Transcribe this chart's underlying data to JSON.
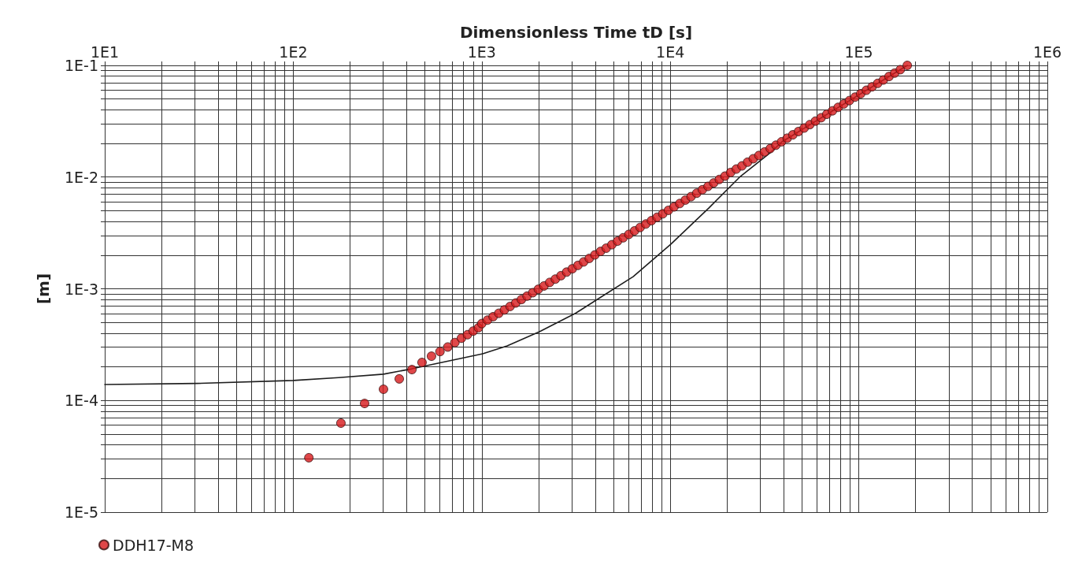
{
  "chart_data": {
    "type": "scatter",
    "xlabel": "Dimensionless Time tD [s]",
    "ylabel": "[m]",
    "log": "xy",
    "grid": true,
    "legend": "bottom left",
    "xlim": [
      10,
      1000000
    ],
    "ylim": [
      1e-05,
      0.1
    ],
    "xticks": [
      {
        "value": 10,
        "label": "1E1"
      },
      {
        "value": 20,
        "label": null
      },
      {
        "value": 30,
        "label": null
      },
      {
        "value": 40,
        "label": null
      },
      {
        "value": 50,
        "label": null
      },
      {
        "value": 60,
        "label": null
      },
      {
        "value": 70,
        "label": null
      },
      {
        "value": 80,
        "label": null
      },
      {
        "value": 90,
        "label": null
      },
      {
        "value": 100,
        "label": "1E2"
      },
      {
        "value": 200,
        "label": null
      },
      {
        "value": 300,
        "label": null
      },
      {
        "value": 400,
        "label": null
      },
      {
        "value": 500,
        "label": null
      },
      {
        "value": 600,
        "label": null
      },
      {
        "value": 700,
        "label": null
      },
      {
        "value": 800,
        "label": null
      },
      {
        "value": 900,
        "label": null
      },
      {
        "value": 1000,
        "label": "1E3"
      },
      {
        "value": 2000,
        "label": null
      },
      {
        "value": 3000,
        "label": null
      },
      {
        "value": 4000,
        "label": null
      },
      {
        "value": 5000,
        "label": null
      },
      {
        "value": 6000,
        "label": null
      },
      {
        "value": 7000,
        "label": null
      },
      {
        "value": 8000,
        "label": null
      },
      {
        "value": 9000,
        "label": null
      },
      {
        "value": 10000,
        "label": "1E4"
      },
      {
        "value": 20000,
        "label": null
      },
      {
        "value": 30000,
        "label": null
      },
      {
        "value": 40000,
        "label": null
      },
      {
        "value": 50000,
        "label": null
      },
      {
        "value": 60000,
        "label": null
      },
      {
        "value": 70000,
        "label": null
      },
      {
        "value": 80000,
        "label": null
      },
      {
        "value": 90000,
        "label": null
      },
      {
        "value": 100000,
        "label": "1E5"
      },
      {
        "value": 200000,
        "label": null
      },
      {
        "value": 300000,
        "label": null
      },
      {
        "value": 400000,
        "label": null
      },
      {
        "value": 500000,
        "label": null
      },
      {
        "value": 600000,
        "label": null
      },
      {
        "value": 700000,
        "label": null
      },
      {
        "value": 800000,
        "label": null
      },
      {
        "value": 900000,
        "label": null
      },
      {
        "value": 1000000,
        "label": "1E6"
      }
    ],
    "yticks": [
      {
        "value": 1e-05,
        "label": "1E-5"
      },
      {
        "value": 2e-05,
        "label": null
      },
      {
        "value": 3e-05,
        "label": null
      },
      {
        "value": 4e-05,
        "label": null
      },
      {
        "value": 5e-05,
        "label": null
      },
      {
        "value": 6e-05,
        "label": null
      },
      {
        "value": 7e-05,
        "label": null
      },
      {
        "value": 8e-05,
        "label": null
      },
      {
        "value": 9e-05,
        "label": null
      },
      {
        "value": 0.0001,
        "label": "1E-4"
      },
      {
        "value": 0.0002,
        "label": null
      },
      {
        "value": 0.0003,
        "label": null
      },
      {
        "value": 0.0004,
        "label": null
      },
      {
        "value": 0.0005,
        "label": null
      },
      {
        "value": 0.0006,
        "label": null
      },
      {
        "value": 0.0007,
        "label": null
      },
      {
        "value": 0.0008,
        "label": null
      },
      {
        "value": 0.0009,
        "label": null
      },
      {
        "value": 0.001,
        "label": "1E-3"
      },
      {
        "value": 0.002,
        "label": null
      },
      {
        "value": 0.003,
        "label": null
      },
      {
        "value": 0.004,
        "label": null
      },
      {
        "value": 0.005,
        "label": null
      },
      {
        "value": 0.006,
        "label": null
      },
      {
        "value": 0.007,
        "label": null
      },
      {
        "value": 0.008,
        "label": null
      },
      {
        "value": 0.009,
        "label": null
      },
      {
        "value": 0.01,
        "label": "1E-2"
      },
      {
        "value": 0.02,
        "label": null
      },
      {
        "value": 0.03,
        "label": null
      },
      {
        "value": 0.04,
        "label": null
      },
      {
        "value": 0.05,
        "label": null
      },
      {
        "value": 0.06,
        "label": null
      },
      {
        "value": 0.07,
        "label": null
      },
      {
        "value": 0.08,
        "label": null
      },
      {
        "value": 0.09,
        "label": null
      },
      {
        "value": 0.1,
        "label": "1E-1"
      }
    ],
    "series": [
      {
        "type": "line",
        "color": "#1e1e1e",
        "marker": "none",
        "line_style": "solid",
        "x": [
          10,
          30.8,
          100,
          174,
          301,
          426,
          1011,
          1363,
          2022,
          3147,
          6353,
          10070,
          15990,
          23280,
          33880,
          39100,
          180700
        ],
        "values": [
          0.000139,
          0.000142,
          0.000151,
          0.00016,
          0.000172,
          0.000192,
          0.000262,
          0.000308,
          0.000413,
          0.000604,
          0.001285,
          0.00251,
          0.00528,
          0.00996,
          0.0165,
          0.0207,
          0.1
        ]
      },
      {
        "name": "DDH17-M8",
        "color": "#d7191c",
        "marker": "circle",
        "x": [
          121,
          179,
          239,
          301,
          365,
          426,
          482,
          541,
          600,
          660,
          720,
          780,
          840,
          900,
          960,
          1000,
          1072,
          1148,
          1230,
          1318,
          1413,
          1514,
          1622,
          1738,
          1862,
          1995,
          2138,
          2291,
          2455,
          2630,
          2818,
          3020,
          3236,
          3467,
          3715,
          3981,
          4266,
          4571,
          4898,
          5248,
          5623,
          6026,
          6457,
          6918,
          7413,
          7943,
          8511,
          9120,
          9772,
          10471,
          11220,
          12023,
          12882,
          13804,
          14791,
          15849,
          16982,
          18197,
          19498,
          20893,
          22387,
          23988,
          25704,
          27542,
          29512,
          31623,
          33884,
          36308,
          38905,
          41687,
          44668,
          47863,
          51286,
          54954,
          58884,
          63096,
          67608,
          72444,
          77625,
          83176,
          89125,
          95499,
          102329,
          109648,
          117490,
          125893,
          134896,
          144544,
          154882,
          165959,
          180700
        ],
        "values": [
          3.07e-05,
          6.27e-05,
          9.4e-05,
          0.000126,
          0.000156,
          0.000189,
          0.000219,
          0.000249,
          0.000274,
          0.000301,
          0.00033,
          0.000361,
          0.000388,
          0.000418,
          0.000447,
          0.000488,
          0.000524,
          0.000562,
          0.000603,
          0.000647,
          0.000695,
          0.000746,
          0.000801,
          0.000859,
          0.000922,
          0.00099,
          0.00106,
          0.00114,
          0.00122,
          0.00131,
          0.00141,
          0.00151,
          0.00162,
          0.00174,
          0.00187,
          0.00201,
          0.00216,
          0.00231,
          0.00248,
          0.00267,
          0.00286,
          0.00307,
          0.0033,
          0.00354,
          0.0038,
          0.00407,
          0.00437,
          0.00469,
          0.00504,
          0.00541,
          0.0058,
          0.00623,
          0.00668,
          0.00717,
          0.0077,
          0.00826,
          0.00887,
          0.00952,
          0.0102,
          0.011,
          0.0118,
          0.0126,
          0.0136,
          0.0146,
          0.0156,
          0.0168,
          0.018,
          0.0193,
          0.0207,
          0.0223,
          0.0239,
          0.0256,
          0.0275,
          0.0295,
          0.0317,
          0.034,
          0.0365,
          0.0392,
          0.0421,
          0.0451,
          0.0484,
          0.052,
          0.0558,
          0.0599,
          0.0643,
          0.069,
          0.074,
          0.0795,
          0.0853,
          0.0916,
          0.1
        ]
      }
    ]
  }
}
